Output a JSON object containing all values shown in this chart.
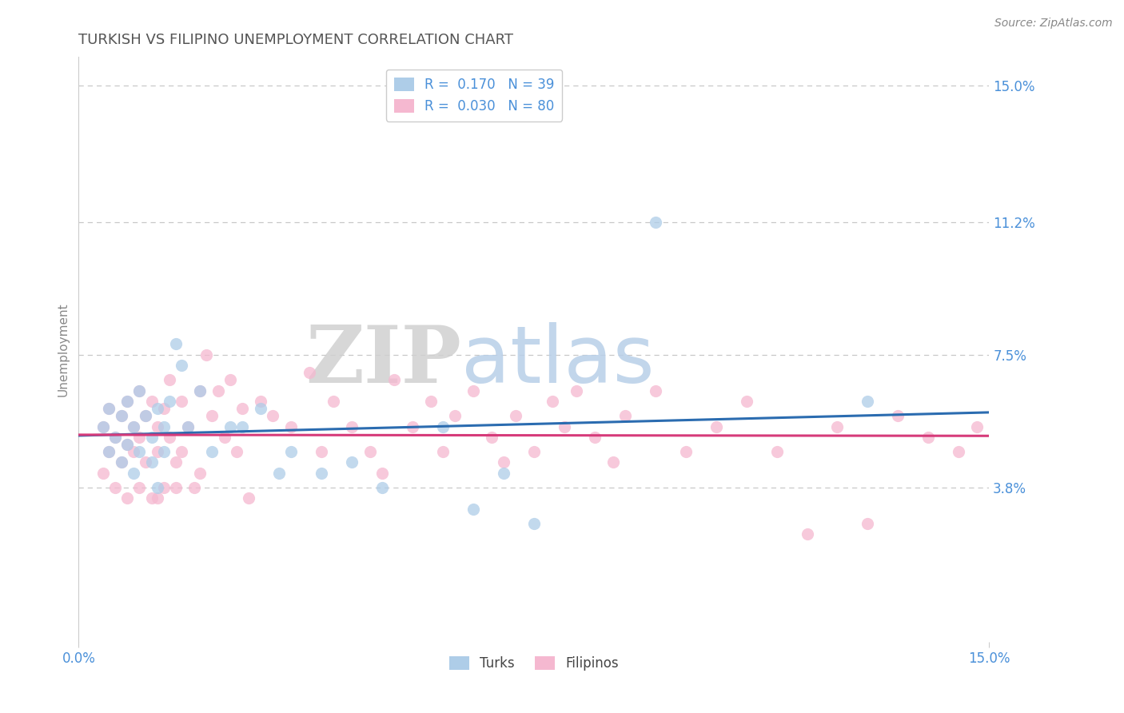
{
  "title": "TURKISH VS FILIPINO UNEMPLOYMENT CORRELATION CHART",
  "source": "Source: ZipAtlas.com",
  "ylabel": "Unemployment",
  "xlim": [
    0.0,
    0.15
  ],
  "ylim": [
    -0.005,
    0.158
  ],
  "yticks": [
    0.038,
    0.075,
    0.112,
    0.15
  ],
  "ytick_labels": [
    "3.8%",
    "7.5%",
    "11.2%",
    "15.0%"
  ],
  "xtick_labels": [
    "0.0%",
    "15.0%"
  ],
  "turks_R": 0.17,
  "turks_N": 39,
  "filipinos_R": 0.03,
  "filipinos_N": 80,
  "turks_fill": "#aecde8",
  "turks_edge": "#7bb3d8",
  "filipinos_fill": "#f5b8d0",
  "filipinos_edge": "#e882aa",
  "blue_line_color": "#2b6cb0",
  "pink_line_color": "#d63b7a",
  "background_color": "#ffffff",
  "grid_color": "#c8c8c8",
  "title_color": "#555555",
  "tick_label_color": "#4a90d9",
  "ylabel_color": "#888888",
  "source_color": "#888888",
  "watermark_ZIP_color": "#d0d0d0",
  "watermark_atlas_color": "#b8cfe8",
  "turks_x": [
    0.004,
    0.005,
    0.005,
    0.006,
    0.007,
    0.007,
    0.008,
    0.008,
    0.009,
    0.009,
    0.01,
    0.01,
    0.011,
    0.012,
    0.012,
    0.013,
    0.013,
    0.014,
    0.014,
    0.015,
    0.016,
    0.017,
    0.018,
    0.02,
    0.022,
    0.025,
    0.027,
    0.03,
    0.033,
    0.035,
    0.04,
    0.045,
    0.05,
    0.06,
    0.065,
    0.07,
    0.075,
    0.095,
    0.13
  ],
  "turks_y": [
    0.055,
    0.048,
    0.06,
    0.052,
    0.045,
    0.058,
    0.05,
    0.062,
    0.042,
    0.055,
    0.048,
    0.065,
    0.058,
    0.052,
    0.045,
    0.06,
    0.038,
    0.055,
    0.048,
    0.062,
    0.078,
    0.072,
    0.055,
    0.065,
    0.048,
    0.055,
    0.055,
    0.06,
    0.042,
    0.048,
    0.042,
    0.045,
    0.038,
    0.055,
    0.032,
    0.042,
    0.028,
    0.112,
    0.062
  ],
  "filipinos_x": [
    0.004,
    0.004,
    0.005,
    0.005,
    0.006,
    0.006,
    0.007,
    0.007,
    0.008,
    0.008,
    0.008,
    0.009,
    0.009,
    0.01,
    0.01,
    0.01,
    0.011,
    0.011,
    0.012,
    0.012,
    0.013,
    0.013,
    0.013,
    0.014,
    0.014,
    0.015,
    0.015,
    0.016,
    0.016,
    0.017,
    0.017,
    0.018,
    0.019,
    0.02,
    0.02,
    0.021,
    0.022,
    0.023,
    0.024,
    0.025,
    0.026,
    0.027,
    0.028,
    0.03,
    0.032,
    0.035,
    0.038,
    0.04,
    0.042,
    0.045,
    0.048,
    0.05,
    0.052,
    0.055,
    0.058,
    0.06,
    0.062,
    0.065,
    0.068,
    0.07,
    0.072,
    0.075,
    0.078,
    0.08,
    0.082,
    0.085,
    0.088,
    0.09,
    0.095,
    0.1,
    0.105,
    0.11,
    0.115,
    0.12,
    0.125,
    0.13,
    0.135,
    0.14,
    0.145,
    0.148
  ],
  "filipinos_y": [
    0.055,
    0.042,
    0.06,
    0.048,
    0.052,
    0.038,
    0.045,
    0.058,
    0.05,
    0.062,
    0.035,
    0.055,
    0.048,
    0.065,
    0.052,
    0.038,
    0.058,
    0.045,
    0.062,
    0.035,
    0.055,
    0.048,
    0.035,
    0.06,
    0.038,
    0.068,
    0.052,
    0.045,
    0.038,
    0.062,
    0.048,
    0.055,
    0.038,
    0.065,
    0.042,
    0.075,
    0.058,
    0.065,
    0.052,
    0.068,
    0.048,
    0.06,
    0.035,
    0.062,
    0.058,
    0.055,
    0.07,
    0.048,
    0.062,
    0.055,
    0.048,
    0.042,
    0.068,
    0.055,
    0.062,
    0.048,
    0.058,
    0.065,
    0.052,
    0.045,
    0.058,
    0.048,
    0.062,
    0.055,
    0.065,
    0.052,
    0.045,
    0.058,
    0.065,
    0.048,
    0.055,
    0.062,
    0.048,
    0.025,
    0.055,
    0.028,
    0.058,
    0.052,
    0.048,
    0.055
  ],
  "title_fontsize": 13,
  "axis_label_fontsize": 11,
  "tick_fontsize": 12,
  "legend_fontsize": 12,
  "source_fontsize": 10,
  "dot_size": 120,
  "dot_alpha": 0.75,
  "line_width": 2.2
}
